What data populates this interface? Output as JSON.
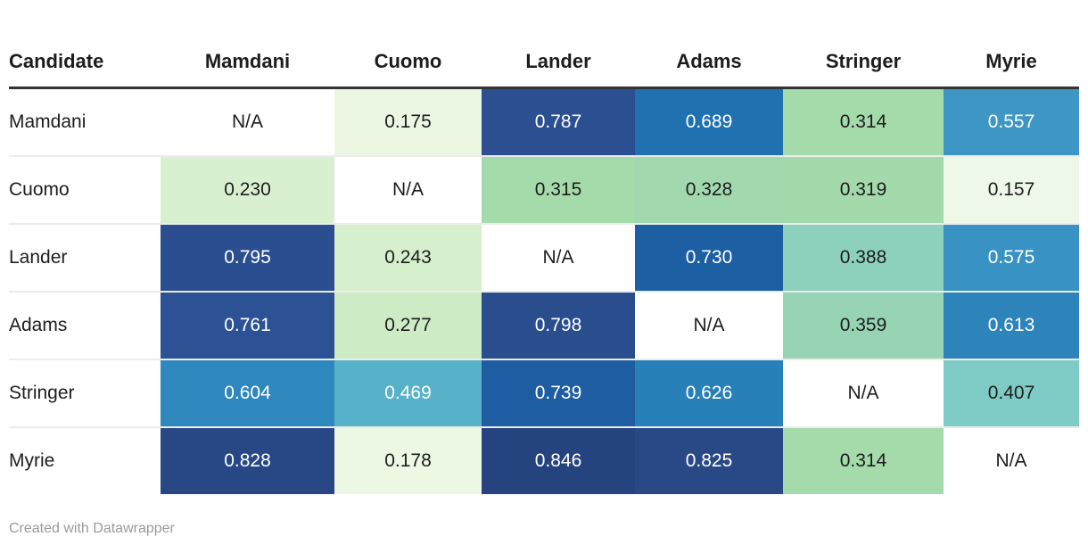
{
  "footer": {
    "attribution": "Created with Datawrapper"
  },
  "chart_data": {
    "type": "heatmap",
    "title": "",
    "row_label_header": "Candidate",
    "columns": [
      "Mamdani",
      "Cuomo",
      "Lander",
      "Adams",
      "Stringer",
      "Myrie"
    ],
    "rows": [
      "Mamdani",
      "Cuomo",
      "Lander",
      "Adams",
      "Stringer",
      "Myrie"
    ],
    "values": [
      [
        null,
        0.175,
        0.787,
        0.689,
        0.314,
        0.557
      ],
      [
        0.23,
        null,
        0.315,
        0.328,
        0.319,
        0.157
      ],
      [
        0.795,
        0.243,
        null,
        0.73,
        0.388,
        0.575
      ],
      [
        0.761,
        0.277,
        0.798,
        null,
        0.359,
        0.613
      ],
      [
        0.604,
        0.469,
        0.739,
        0.626,
        null,
        0.407
      ],
      [
        0.828,
        0.178,
        0.846,
        0.825,
        0.314,
        null
      ]
    ],
    "na_label": "N/A",
    "value_range": [
      0,
      1
    ],
    "palette": "green-to-blue",
    "palette_samples": {
      "low": "#eef8e8",
      "mid_green": "#a5daab",
      "teal": "#7eccc5",
      "mid_blue": "#3e96c5",
      "high": "#25437e"
    },
    "legend": "none",
    "grid": "off"
  },
  "table": {
    "header": [
      "Candidate",
      "Mamdani",
      "Cuomo",
      "Lander",
      "Adams",
      "Stringer",
      "Myrie"
    ],
    "rows": [
      {
        "label": "Mamdani",
        "cells": [
          {
            "text": "N/A",
            "bg": "#ffffff",
            "fg": "#1d1d1d"
          },
          {
            "text": "0.175",
            "bg": "#ebf7e3",
            "fg": "#1d1d1d"
          },
          {
            "text": "0.787",
            "bg": "#2b4f91",
            "fg": "#ffffff"
          },
          {
            "text": "0.689",
            "bg": "#2071b0",
            "fg": "#ffffff"
          },
          {
            "text": "0.314",
            "bg": "#a5daab",
            "fg": "#1d1d1d"
          },
          {
            "text": "0.557",
            "bg": "#3e96c5",
            "fg": "#ffffff"
          }
        ]
      },
      {
        "label": "Cuomo",
        "cells": [
          {
            "text": "0.230",
            "bg": "#d9f0d0",
            "fg": "#1d1d1d"
          },
          {
            "text": "N/A",
            "bg": "#ffffff",
            "fg": "#1d1d1d"
          },
          {
            "text": "0.315",
            "bg": "#a5daab",
            "fg": "#1d1d1d"
          },
          {
            "text": "0.328",
            "bg": "#a1d8ae",
            "fg": "#1d1d1d"
          },
          {
            "text": "0.319",
            "bg": "#a4d9ac",
            "fg": "#1d1d1d"
          },
          {
            "text": "0.157",
            "bg": "#eef8e8",
            "fg": "#1d1d1d"
          }
        ]
      },
      {
        "label": "Lander",
        "cells": [
          {
            "text": "0.795",
            "bg": "#2a4e8f",
            "fg": "#ffffff"
          },
          {
            "text": "0.243",
            "bg": "#d6efcc",
            "fg": "#1d1d1d"
          },
          {
            "text": "N/A",
            "bg": "#ffffff",
            "fg": "#1d1d1d"
          },
          {
            "text": "0.730",
            "bg": "#1d5fa3",
            "fg": "#ffffff"
          },
          {
            "text": "0.388",
            "bg": "#8dd1bd",
            "fg": "#1d1d1d"
          },
          {
            "text": "0.575",
            "bg": "#3892c3",
            "fg": "#ffffff"
          }
        ]
      },
      {
        "label": "Adams",
        "cells": [
          {
            "text": "0.761",
            "bg": "#2c5295",
            "fg": "#ffffff"
          },
          {
            "text": "0.277",
            "bg": "#cdecc6",
            "fg": "#1d1d1d"
          },
          {
            "text": "0.798",
            "bg": "#2a4d8e",
            "fg": "#ffffff"
          },
          {
            "text": "N/A",
            "bg": "#ffffff",
            "fg": "#1d1d1d"
          },
          {
            "text": "0.359",
            "bg": "#97d4b4",
            "fg": "#1d1d1d"
          },
          {
            "text": "0.613",
            "bg": "#2c84bb",
            "fg": "#ffffff"
          }
        ]
      },
      {
        "label": "Stringer",
        "cells": [
          {
            "text": "0.604",
            "bg": "#2e87bd",
            "fg": "#ffffff"
          },
          {
            "text": "0.469",
            "bg": "#57b2c9",
            "fg": "#ffffff"
          },
          {
            "text": "0.739",
            "bg": "#1e5da1",
            "fg": "#ffffff"
          },
          {
            "text": "0.626",
            "bg": "#2880b8",
            "fg": "#ffffff"
          },
          {
            "text": "N/A",
            "bg": "#ffffff",
            "fg": "#1d1d1d"
          },
          {
            "text": "0.407",
            "bg": "#7eccc5",
            "fg": "#1d1d1d"
          }
        ]
      },
      {
        "label": "Myrie",
        "cells": [
          {
            "text": "0.828",
            "bg": "#274785",
            "fg": "#ffffff"
          },
          {
            "text": "0.178",
            "bg": "#ecf7e4",
            "fg": "#1d1d1d"
          },
          {
            "text": "0.846",
            "bg": "#25437e",
            "fg": "#ffffff"
          },
          {
            "text": "0.825",
            "bg": "#284886",
            "fg": "#ffffff"
          },
          {
            "text": "0.314",
            "bg": "#a5daab",
            "fg": "#1d1d1d"
          },
          {
            "text": "N/A",
            "bg": "#ffffff",
            "fg": "#1d1d1d"
          }
        ]
      }
    ]
  }
}
